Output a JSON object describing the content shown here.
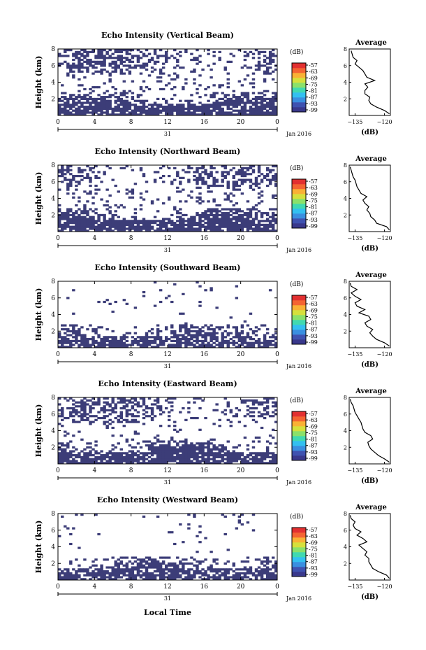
{
  "figure": {
    "xlabel": "Local Time",
    "cbar_unit": "(dB)",
    "avg_title": "Average",
    "avg_xlabel": "(dB)"
  },
  "palette": {
    "fill": "#3c3d78",
    "cbar": [
      "#39388c",
      "#3f52b0",
      "#3a8fe0",
      "#33c0f0",
      "#41d9b0",
      "#8be16a",
      "#d6e03c",
      "#f9b135",
      "#f46432",
      "#e23030"
    ]
  },
  "chart_data": [
    {
      "type": "heatmap",
      "title": "Echo Intensity (Vertical Beam)",
      "ylabel": "Height (km)",
      "yticks": [
        "2",
        "4",
        "6",
        "8"
      ],
      "ylim": [
        0,
        8
      ],
      "xlim": [
        0,
        24
      ],
      "xticks": [
        "0",
        "4",
        "8",
        "12",
        "16",
        "20",
        "0"
      ],
      "date_tick": "31",
      "date_label": "Jan 2016",
      "cbar_ticks": [
        "-57",
        "-63",
        "-69",
        "-75",
        "-81",
        "-87",
        "-93",
        "-99"
      ],
      "avg_xticks": [
        "-135",
        "-120"
      ],
      "avg_xlim": [
        -138,
        -117
      ],
      "avg_ylim": [
        0,
        8
      ],
      "avg_profile": {
        "height_km": [
          0.2,
          0.6,
          1.0,
          1.4,
          1.8,
          2.2,
          2.6,
          3.0,
          3.4,
          3.8,
          4.2,
          4.6,
          5.0,
          5.4,
          5.8,
          6.2,
          6.6,
          7.0,
          7.4,
          7.8
        ],
        "db": [
          -117.5,
          -120,
          -124,
          -127,
          -128,
          -127.5,
          -130,
          -130,
          -128.5,
          -130,
          -125,
          -129,
          -130,
          -131,
          -133,
          -135,
          -134,
          -136,
          -136.5,
          -137
        ]
      }
    },
    {
      "type": "heatmap",
      "title": "Echo Intensity (Northward Beam)",
      "ylabel": "Height (km)",
      "yticks": [
        "2",
        "4",
        "6",
        "8"
      ],
      "ylim": [
        0,
        8
      ],
      "xlim": [
        0,
        24
      ],
      "xticks": [
        "0",
        "4",
        "8",
        "12",
        "16",
        "20",
        "0"
      ],
      "date_tick": "31",
      "date_label": "Jan 2016",
      "cbar_ticks": [
        "-57",
        "-63",
        "-69",
        "-75",
        "-81",
        "-87",
        "-93",
        "-99"
      ],
      "avg_xticks": [
        "-135",
        "-120"
      ],
      "avg_xlim": [
        -138,
        -117
      ],
      "avg_ylim": [
        0,
        8
      ],
      "avg_profile": {
        "height_km": [
          0.2,
          0.6,
          1.0,
          1.4,
          1.8,
          2.2,
          2.6,
          3.0,
          3.4,
          3.8,
          4.2,
          4.6,
          5.0,
          5.4,
          5.8,
          6.2,
          6.6,
          7.0,
          7.4,
          7.8
        ],
        "db": [
          -117.5,
          -119,
          -124,
          -125,
          -127,
          -127.5,
          -129,
          -128,
          -130,
          -131,
          -129,
          -132,
          -133,
          -134,
          -134.5,
          -135,
          -136,
          -136.5,
          -137,
          -137.5
        ]
      }
    },
    {
      "type": "heatmap",
      "title": "Echo Intensity (Southward Beam)",
      "ylabel": "Height (km)",
      "yticks": [
        "2",
        "4",
        "6",
        "8"
      ],
      "ylim": [
        0,
        8
      ],
      "xlim": [
        0,
        24
      ],
      "xticks": [
        "0",
        "4",
        "8",
        "12",
        "16",
        "20",
        "0"
      ],
      "date_tick": "31",
      "date_label": "Jan 2016",
      "cbar_ticks": [
        "-57",
        "-63",
        "-69",
        "-75",
        "-81",
        "-87",
        "-93",
        "-99"
      ],
      "avg_xticks": [
        "-135",
        "-120"
      ],
      "avg_xlim": [
        -138,
        -117
      ],
      "avg_ylim": [
        0,
        8
      ],
      "avg_profile": {
        "height_km": [
          0.2,
          0.6,
          1.0,
          1.4,
          1.8,
          2.2,
          2.6,
          3.0,
          3.4,
          3.8,
          4.2,
          4.6,
          5.0,
          5.4,
          5.8,
          6.2,
          6.6,
          7.0,
          7.4,
          7.8
        ],
        "db": [
          -117.5,
          -120,
          -124,
          -126,
          -127.5,
          -126,
          -129,
          -130,
          -127,
          -128,
          -133,
          -130,
          -134,
          -135,
          -132,
          -135,
          -137,
          -134,
          -137,
          -137.5
        ]
      }
    },
    {
      "type": "heatmap",
      "title": "Echo Intensity (Eastward Beam)",
      "ylabel": "Height (km)",
      "yticks": [
        "2",
        "4",
        "6",
        "8"
      ],
      "ylim": [
        0,
        8
      ],
      "xlim": [
        0,
        24
      ],
      "xticks": [
        "0",
        "4",
        "8",
        "12",
        "16",
        "20",
        "0"
      ],
      "date_tick": "31",
      "date_label": "Jan 2016",
      "cbar_ticks": [
        "-57",
        "-63",
        "-69",
        "-75",
        "-81",
        "-87",
        "-93",
        "-99"
      ],
      "avg_xticks": [
        "-135",
        "-120"
      ],
      "avg_xlim": [
        -138,
        -117
      ],
      "avg_ylim": [
        0,
        8
      ],
      "avg_profile": {
        "height_km": [
          0.2,
          0.6,
          1.0,
          1.4,
          1.8,
          2.2,
          2.6,
          3.0,
          3.4,
          3.8,
          4.2,
          4.6,
          5.0,
          5.4,
          5.8,
          6.2,
          6.6,
          7.0,
          7.4,
          7.8
        ],
        "db": [
          -117.5,
          -120,
          -123,
          -125,
          -127,
          -128,
          -128.5,
          -126,
          -127,
          -130,
          -131,
          -131.5,
          -132,
          -133,
          -134,
          -135,
          -135.5,
          -136,
          -137,
          -137.5
        ]
      }
    },
    {
      "type": "heatmap",
      "title": "Echo Intensity (Westward Beam)",
      "ylabel": "Height (km)",
      "yticks": [
        "2",
        "4",
        "6",
        "8"
      ],
      "ylim": [
        0,
        8
      ],
      "xlim": [
        0,
        24
      ],
      "xticks": [
        "0",
        "4",
        "8",
        "12",
        "16",
        "20",
        "0"
      ],
      "date_tick": "31",
      "date_label": "Jan 2016",
      "cbar_ticks": [
        "-57",
        "-63",
        "-69",
        "-75",
        "-81",
        "-87",
        "-93",
        "-99"
      ],
      "avg_xticks": [
        "-135",
        "-120"
      ],
      "avg_xlim": [
        -138,
        -117
      ],
      "avg_ylim": [
        0,
        8
      ],
      "avg_profile": {
        "height_km": [
          0.2,
          0.6,
          1.0,
          1.4,
          1.8,
          2.2,
          2.6,
          3.0,
          3.4,
          3.8,
          4.2,
          4.6,
          5.0,
          5.4,
          5.8,
          6.2,
          6.6,
          7.0,
          7.4,
          7.8
        ],
        "db": [
          -117.5,
          -119,
          -123,
          -126,
          -127,
          -128,
          -128,
          -130,
          -129,
          -131,
          -133,
          -129,
          -131,
          -134,
          -132,
          -135,
          -136,
          -135,
          -137,
          -137.5
        ]
      }
    }
  ]
}
